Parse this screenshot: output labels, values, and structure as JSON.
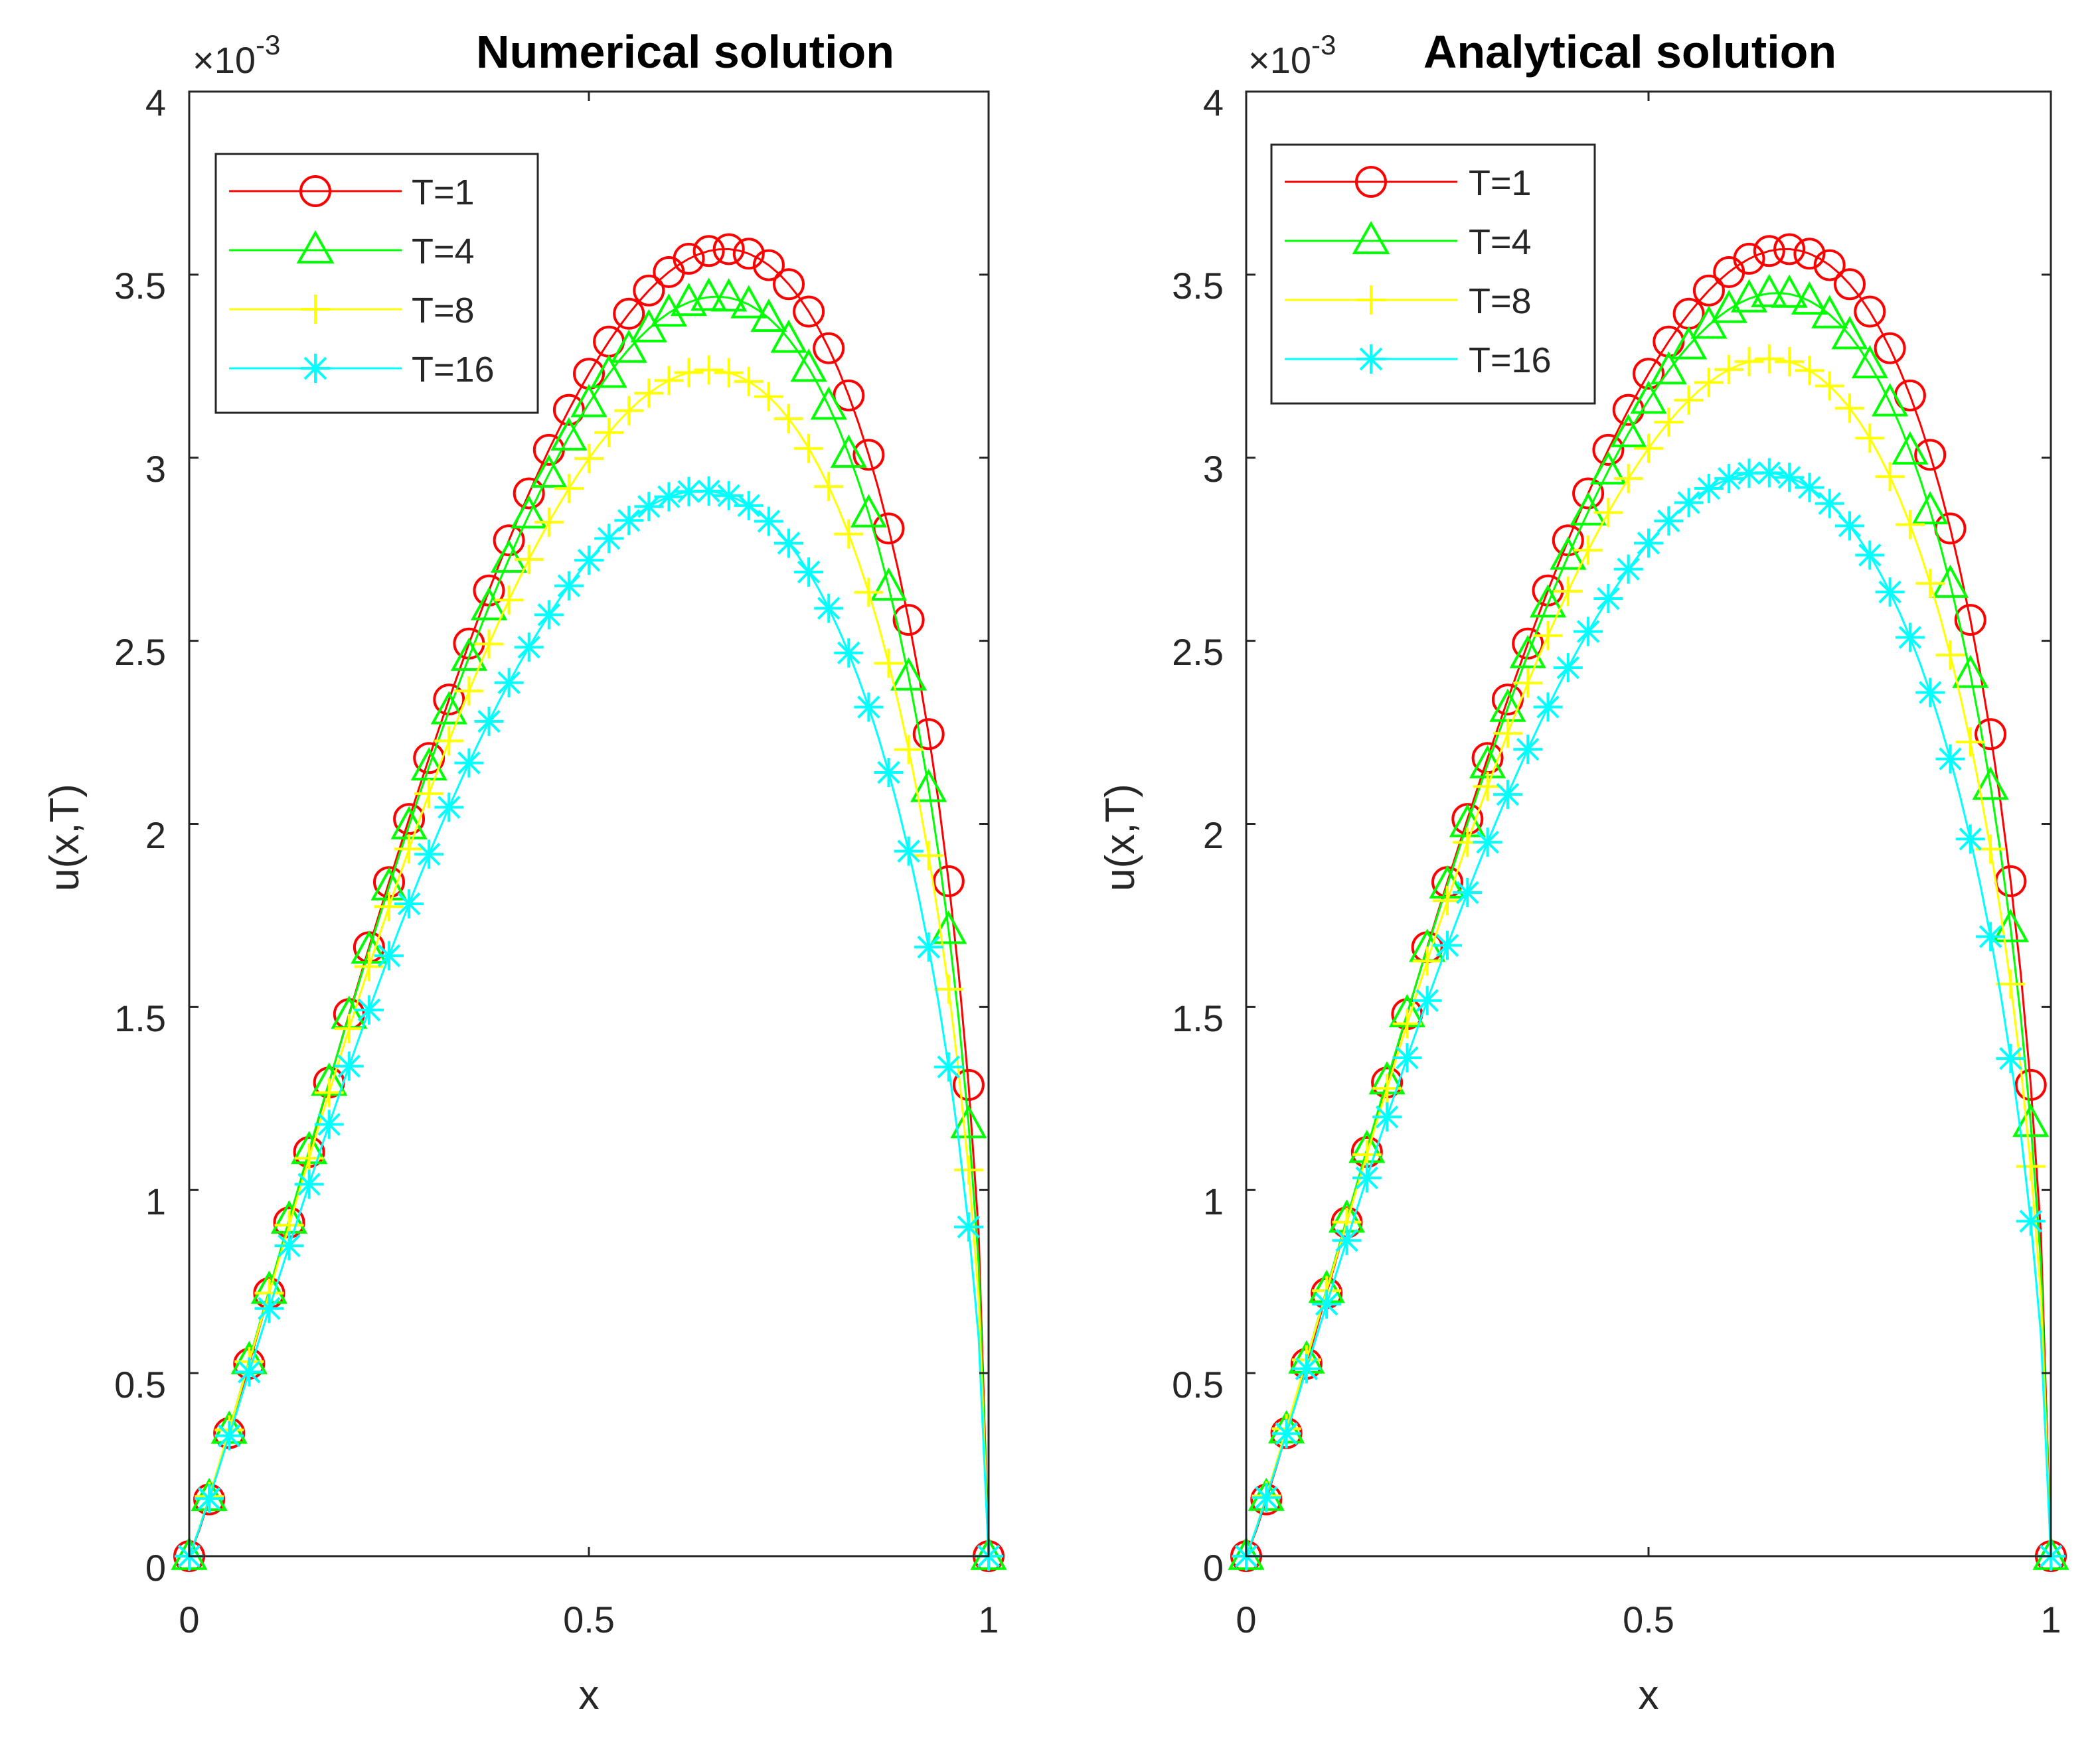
{
  "colors": {
    "T1": "#ff0000",
    "T4": "#00ff00",
    "T8": "#ffff00",
    "T16": "#00ffff",
    "axis": "#262626",
    "background": "#ffffff"
  },
  "chart_data": [
    {
      "type": "line",
      "title": "Numerical solution",
      "xlabel": "x",
      "ylabel": "u(x,T)",
      "y_exponent_label": "×10",
      "y_exponent": "-3",
      "xlim": [
        0,
        1
      ],
      "ylim": [
        0,
        4
      ],
      "xticks": [
        0,
        0.5,
        1
      ],
      "xtick_labels": [
        "0",
        "0.5",
        "1"
      ],
      "yticks": [
        0,
        0.5,
        1,
        1.5,
        2,
        2.5,
        3,
        3.5,
        4
      ],
      "ytick_labels": [
        "0",
        "0.5",
        "1",
        "1.5",
        "2",
        "2.5",
        "3",
        "3.5",
        "4"
      ],
      "grid": false,
      "legend_position": "top-left",
      "series": [
        {
          "name": "T=1",
          "color": "#ff0000",
          "marker": "circle",
          "peak": 3.57,
          "peak_x": 0.67
        },
        {
          "name": "T=4",
          "color": "#00ff00",
          "marker": "triangle",
          "peak": 3.44,
          "peak_x": 0.66
        },
        {
          "name": "T=8",
          "color": "#ffff00",
          "marker": "plus",
          "peak": 3.24,
          "peak_x": 0.65
        },
        {
          "name": "T=16",
          "color": "#00ffff",
          "marker": "asterisk",
          "peak": 2.91,
          "peak_x": 0.64
        }
      ]
    },
    {
      "type": "line",
      "title": "Analytical solution",
      "xlabel": "x",
      "ylabel": "u(x,T)",
      "y_exponent_label": "×10",
      "y_exponent": "-3",
      "xlim": [
        0,
        1
      ],
      "ylim": [
        0,
        4
      ],
      "xticks": [
        0,
        0.5,
        1
      ],
      "xtick_labels": [
        "0",
        "0.5",
        "1"
      ],
      "yticks": [
        0,
        0.5,
        1,
        1.5,
        2,
        2.5,
        3,
        3.5,
        4
      ],
      "ytick_labels": [
        "0",
        "0.5",
        "1",
        "1.5",
        "2",
        "2.5",
        "3",
        "3.5",
        "4"
      ],
      "grid": false,
      "legend_position": "top-left",
      "series": [
        {
          "name": "T=1",
          "color": "#ff0000",
          "marker": "circle",
          "peak": 3.57,
          "peak_x": 0.67
        },
        {
          "name": "T=4",
          "color": "#00ff00",
          "marker": "triangle",
          "peak": 3.45,
          "peak_x": 0.66
        },
        {
          "name": "T=8",
          "color": "#ffff00",
          "marker": "plus",
          "peak": 3.27,
          "peak_x": 0.65
        },
        {
          "name": "T=16",
          "color": "#00ffff",
          "marker": "asterisk",
          "peak": 2.96,
          "peak_x": 0.64
        }
      ]
    }
  ]
}
